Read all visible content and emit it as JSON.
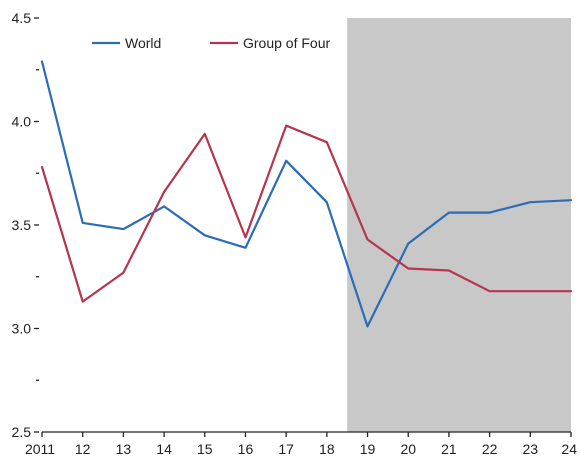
{
  "chart_data": {
    "type": "line",
    "title": "",
    "xlabel": "",
    "ylabel": "",
    "categories": [
      "2011",
      "12",
      "13",
      "14",
      "15",
      "16",
      "17",
      "18",
      "19",
      "20",
      "21",
      "22",
      "23",
      "24"
    ],
    "x": [
      2011,
      2012,
      2013,
      2014,
      2015,
      2016,
      2017,
      2018,
      2019,
      2020,
      2021,
      2022,
      2023,
      2024
    ],
    "ylim": [
      2.5,
      4.5
    ],
    "yticks": [
      2.5,
      3.0,
      3.5,
      4.0,
      4.5
    ],
    "ytick_labels": [
      "2.5",
      "3.0",
      "3.5",
      "4.0",
      "4.5"
    ],
    "minor_yticks": [
      2.75,
      3.25,
      3.75,
      4.25
    ],
    "grid": false,
    "legend_position": "top-left",
    "forecast_shading": {
      "start": 2018.5,
      "end": 2024,
      "color": "#c8c8c8"
    },
    "series": [
      {
        "name": "World",
        "color": "#2a6db5",
        "values": [
          4.29,
          3.51,
          3.48,
          3.59,
          3.45,
          3.39,
          3.81,
          3.61,
          3.01,
          3.41,
          3.56,
          3.56,
          3.61,
          3.62
        ]
      },
      {
        "name": "Group of Four",
        "color": "#b5364c",
        "values": [
          3.78,
          3.13,
          3.27,
          3.66,
          3.94,
          3.44,
          3.98,
          3.9,
          3.43,
          3.29,
          3.28,
          3.18,
          3.18,
          3.18
        ]
      }
    ]
  }
}
